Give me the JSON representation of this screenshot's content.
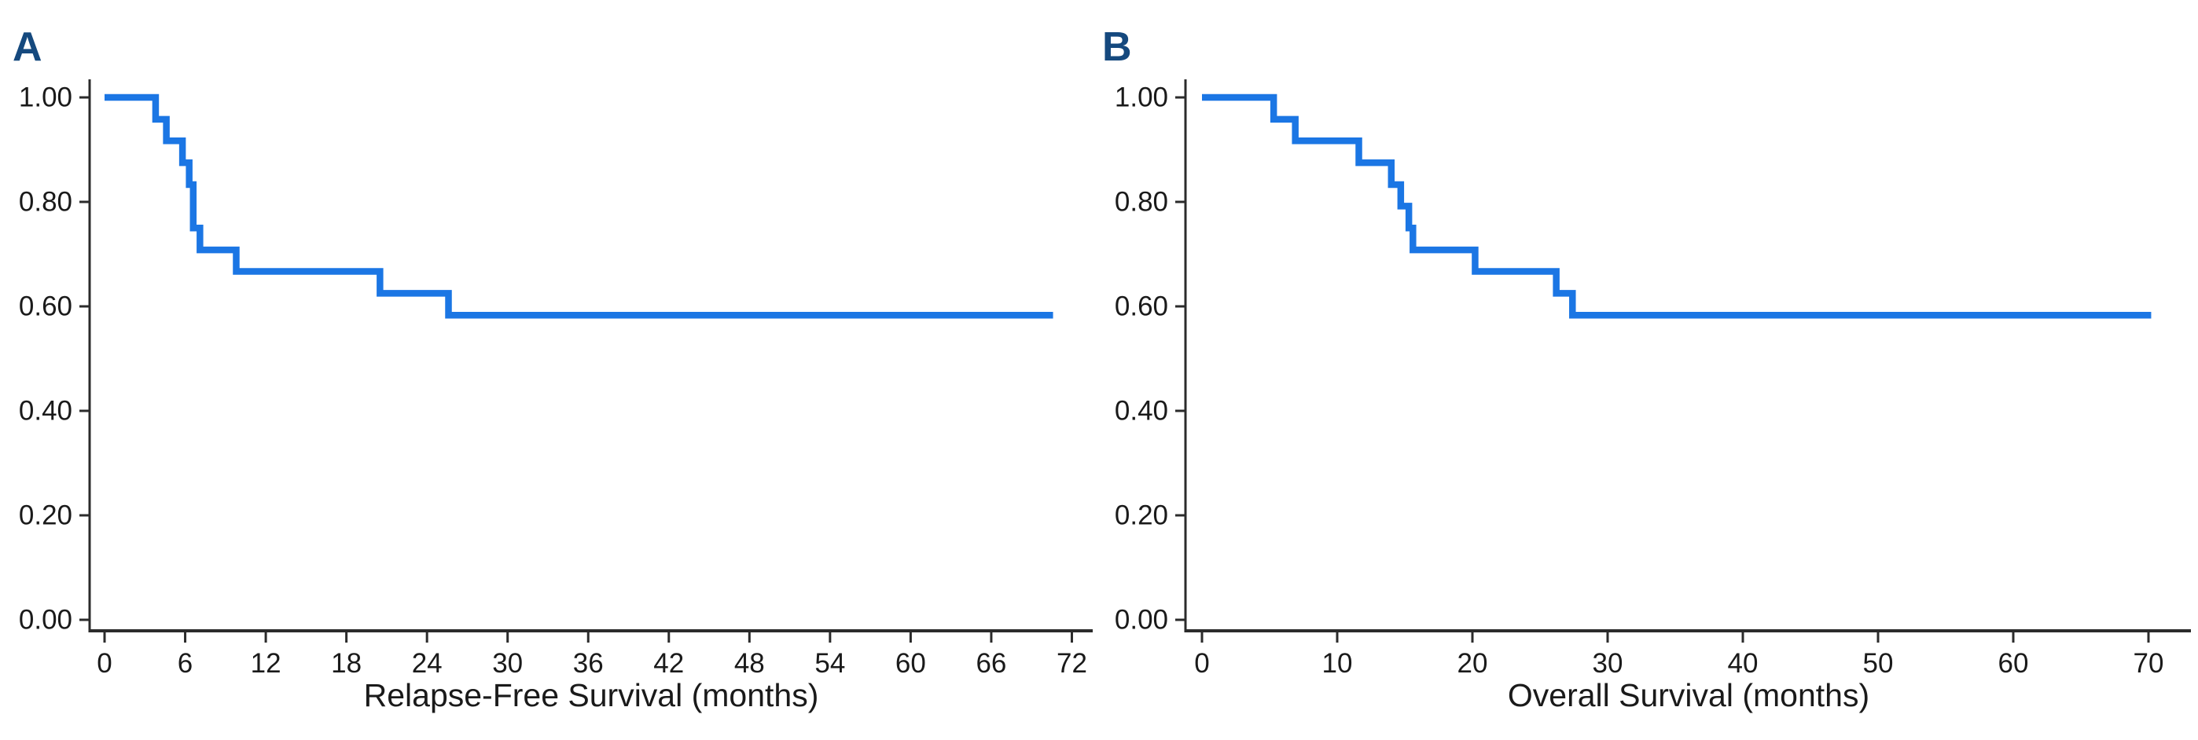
{
  "figure": {
    "background": "#ffffff",
    "description": "Two-panel Kaplan-Meier survival figure"
  },
  "colors": {
    "curve": "#1b76e4",
    "axis": "#2b2b2b",
    "tick_text": "#1a1a1a",
    "panel_label": "#15497e",
    "background": "#ffffff"
  },
  "chart_data": [
    {
      "type": "line",
      "subtype": "kaplan_meier_step",
      "panel_label": "A",
      "title": "",
      "xlabel": "Relapse-Free Survival (months)",
      "ylabel": "",
      "xlim": [
        0,
        72
      ],
      "ylim": [
        0.0,
        1.0
      ],
      "x_ticks": [
        0,
        6,
        12,
        18,
        24,
        30,
        36,
        42,
        48,
        54,
        60,
        66,
        72
      ],
      "y_ticks": [
        1.0,
        0.8,
        0.6,
        0.4,
        0.2,
        0.0
      ],
      "y_tick_labels": [
        "1.00",
        "0.80",
        "0.60",
        "0.40",
        "0.20",
        "0.00"
      ],
      "grid": false,
      "legend": "none",
      "series": [
        {
          "name": "relapse-free-survival",
          "color": "#1b76e4",
          "steps": [
            [
              0,
              1.0
            ],
            [
              3.8,
              0.958
            ],
            [
              4.6,
              0.917
            ],
            [
              5.8,
              0.875
            ],
            [
              6.3,
              0.833
            ],
            [
              6.6,
              0.75
            ],
            [
              7.1,
              0.708
            ],
            [
              9.8,
              0.667
            ],
            [
              20.5,
              0.625
            ],
            [
              25.6,
              0.583
            ]
          ],
          "t_end": 70.6,
          "final_value": 0.583
        }
      ]
    },
    {
      "type": "line",
      "subtype": "kaplan_meier_step",
      "panel_label": "B",
      "title": "",
      "xlabel": "Overall Survival (months)",
      "ylabel": "",
      "xlim": [
        0,
        70
      ],
      "ylim": [
        0.0,
        1.0
      ],
      "x_ticks": [
        0,
        10,
        20,
        30,
        40,
        50,
        60,
        70
      ],
      "y_ticks": [
        1.0,
        0.8,
        0.6,
        0.4,
        0.2,
        0.0
      ],
      "y_tick_labels": [
        "1.00",
        "0.80",
        "0.60",
        "0.40",
        "0.20",
        "0.00"
      ],
      "grid": false,
      "legend": "none",
      "series": [
        {
          "name": "overall-survival",
          "color": "#1b76e4",
          "steps": [
            [
              0,
              1.0
            ],
            [
              5.3,
              0.958
            ],
            [
              6.9,
              0.917
            ],
            [
              11.6,
              0.875
            ],
            [
              14.0,
              0.833
            ],
            [
              14.7,
              0.792
            ],
            [
              15.3,
              0.75
            ],
            [
              15.6,
              0.708
            ],
            [
              20.2,
              0.667
            ],
            [
              26.2,
              0.625
            ],
            [
              27.4,
              0.583
            ]
          ],
          "t_end": 70.2,
          "final_value": 0.583
        }
      ]
    }
  ]
}
